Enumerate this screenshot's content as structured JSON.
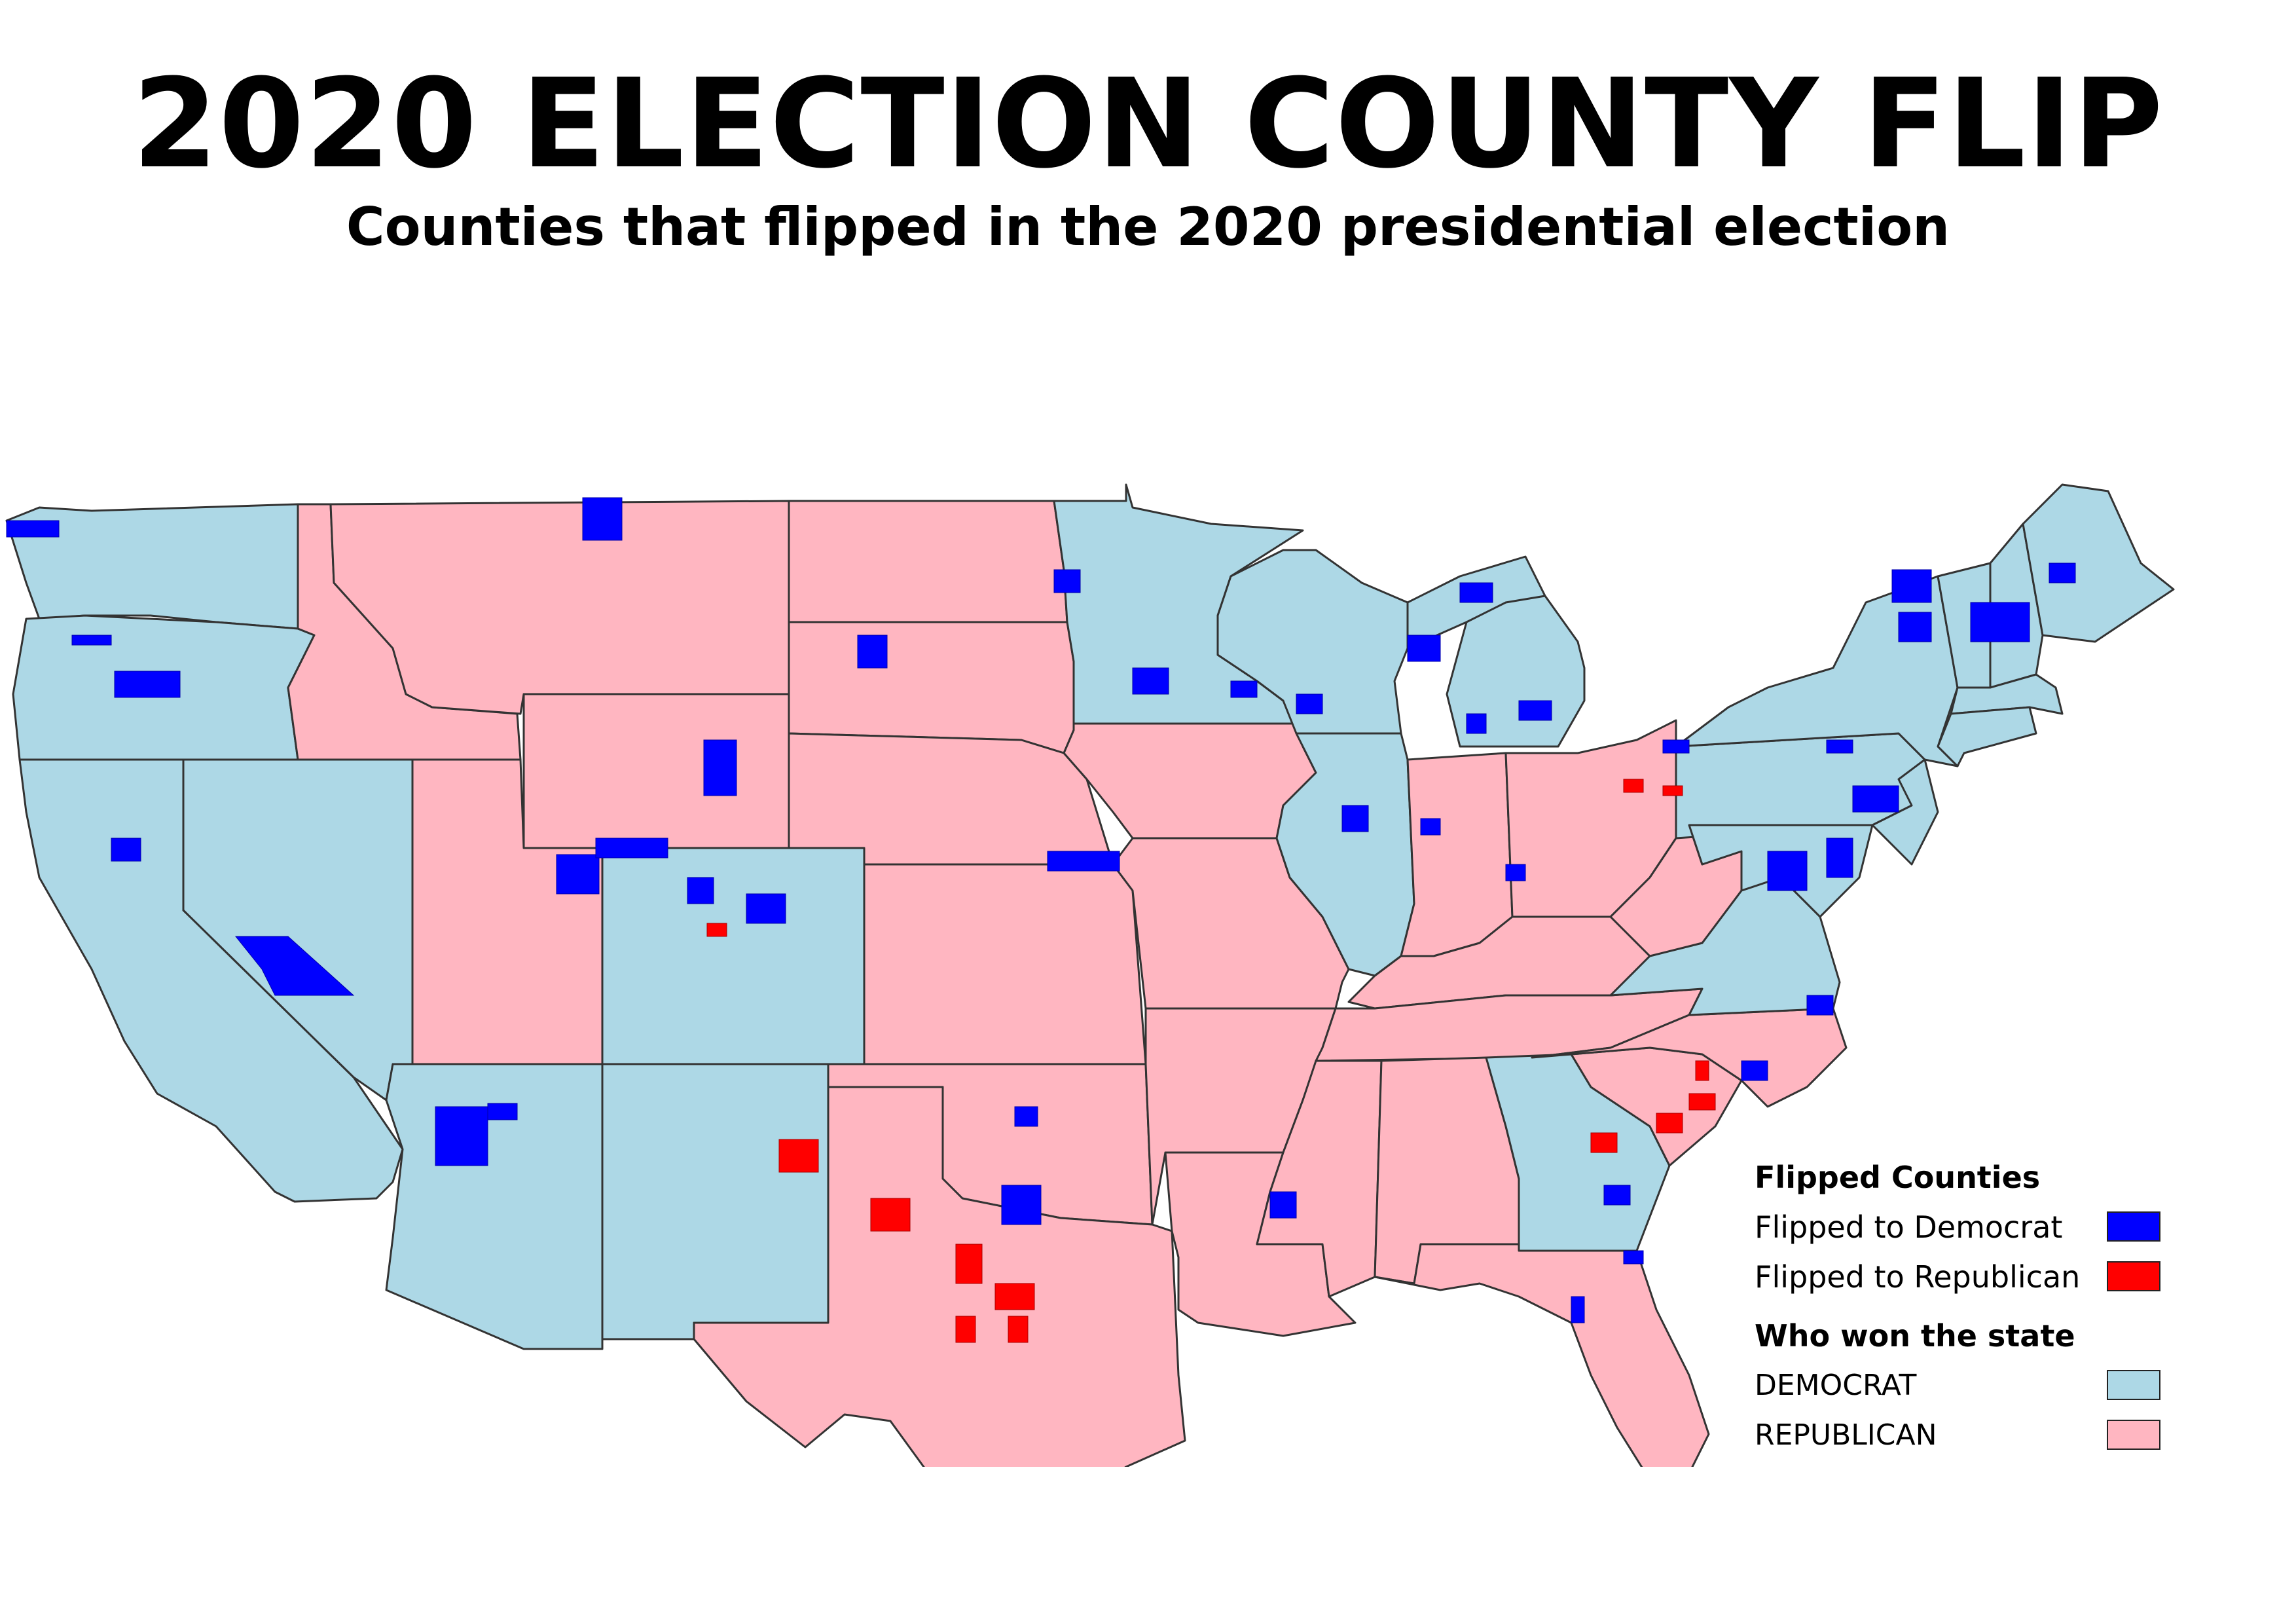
{
  "title": "2020 ELECTION COUNTY FLIP",
  "subtitle": "Counties that flipped in the 2020 presidential election",
  "colors": {
    "flipped_democrat": "#0000ff",
    "flipped_republican": "#ff0000",
    "state_democrat": "#add8e6",
    "state_republican": "#ffb6c1",
    "border": "#333333"
  },
  "legend": {
    "flipped_heading": "Flipped Counties",
    "flipped_democrat_label": "Flipped to Democrat",
    "flipped_republican_label": "Flipped to Republican",
    "state_heading": "Who won the state",
    "democrat_label": "DEMOCRAT",
    "republican_label": "REPUBLICAN"
  }
}
